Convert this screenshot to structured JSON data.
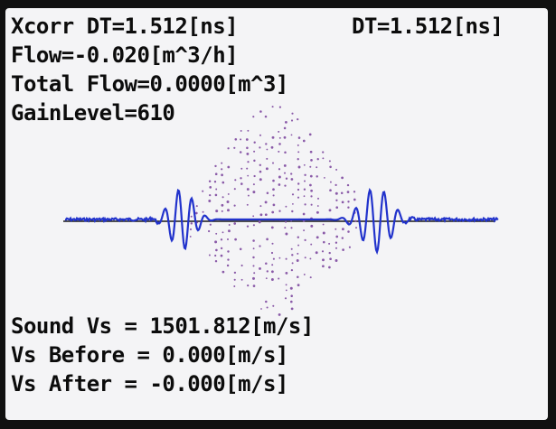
{
  "readouts": {
    "xcorr_dt": "Xcorr DT=1.512[ns]",
    "dt": "DT=1.512[ns]",
    "flow": "Flow=-0.020[m^3/h]",
    "total_flow": "Total Flow=0.0000[m^3]",
    "gain_level": "GainLevel=610",
    "sound_vs": "Sound Vs = 1501.812[m/s]",
    "vs_before": "Vs Before = 0.000[m/s]",
    "vs_after": "Vs After = -0.000[m/s]"
  },
  "colors": {
    "screen_background": "#f4f4f6",
    "text": "#0c0c0c",
    "waveform_line": "#2233cc",
    "correlation_dots": "#8a5aa8",
    "baseline": "#1a1a1a"
  }
}
